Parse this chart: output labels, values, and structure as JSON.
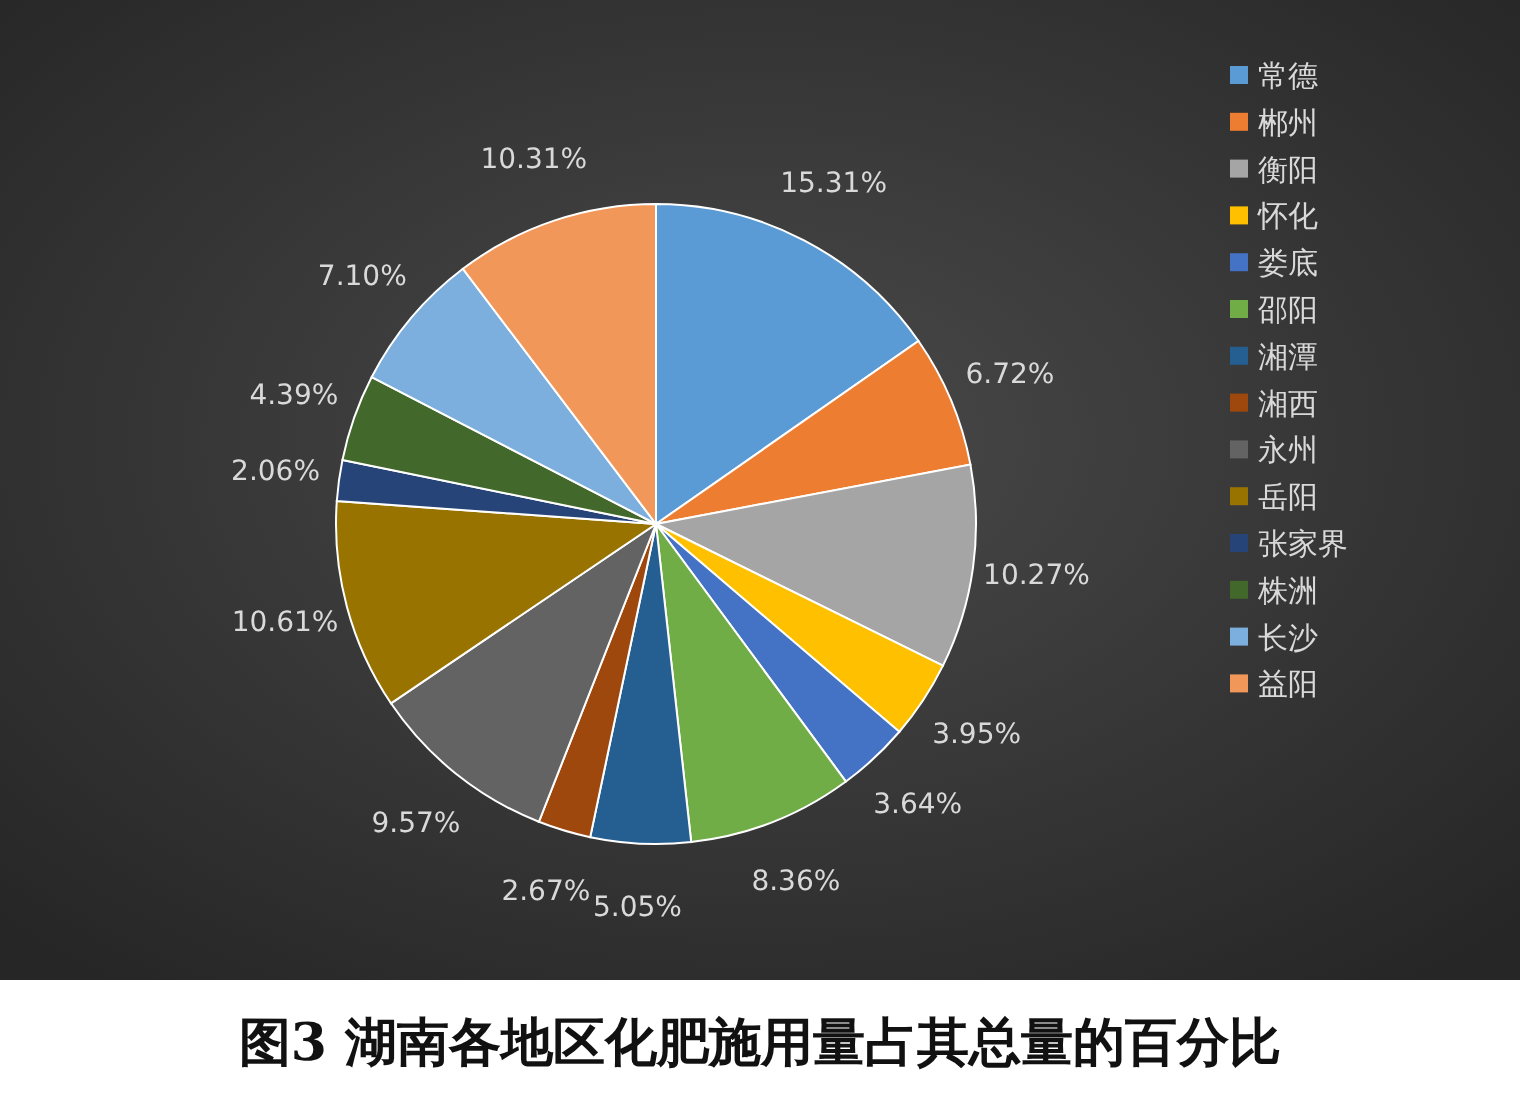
{
  "chart_data": {
    "type": "pie",
    "title": "图3 湖南各地区化肥施用量占其总量的百分比",
    "categories": [
      "常德",
      "郴州",
      "衡阳",
      "怀化",
      "娄底",
      "邵阳",
      "湘潭",
      "湘西",
      "永州",
      "岳阳",
      "张家界",
      "株洲",
      "长沙",
      "益阳"
    ],
    "values": [
      15.31,
      6.72,
      10.27,
      3.95,
      3.64,
      8.36,
      5.05,
      2.67,
      9.57,
      10.61,
      2.06,
      4.39,
      7.1,
      10.31
    ],
    "colors": [
      "#5b9bd5",
      "#ed7d31",
      "#a5a5a5",
      "#ffc000",
      "#4472c4",
      "#70ad47",
      "#255e91",
      "#9e480e",
      "#636363",
      "#997300",
      "#264478",
      "#43682b",
      "#7cafdd",
      "#f1975a"
    ],
    "value_labels": [
      "15.31%",
      "6.72%",
      "10.27%",
      "3.95%",
      "3.64%",
      "8.36%",
      "5.05%",
      "2.67%",
      "9.57%",
      "10.61%",
      "2.06%",
      "4.39%",
      "7.10%",
      "10.31%"
    ],
    "legend": "right"
  }
}
